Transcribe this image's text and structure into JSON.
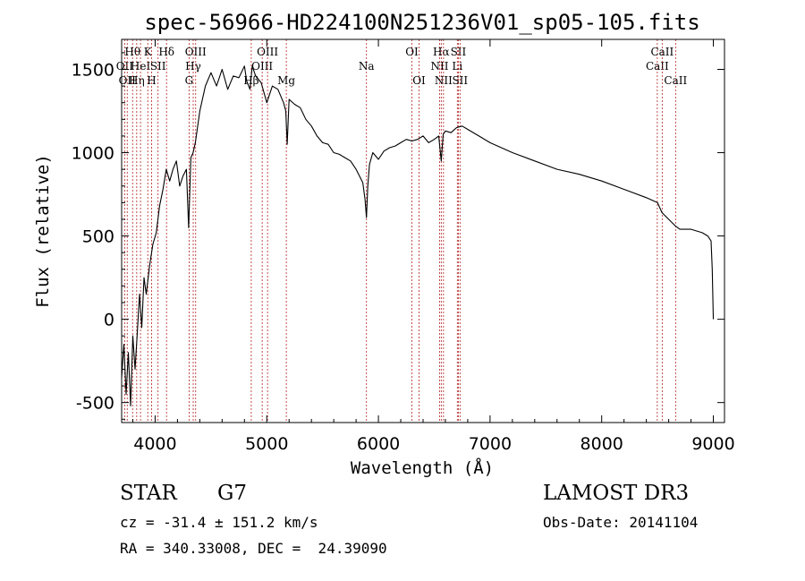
{
  "chart_data": {
    "type": "line",
    "title": "spec-56966-HD224100N251236V01_sp05-105.fits",
    "xlabel": "Wavelength (Å)",
    "ylabel": "Flux (relative)",
    "xlim": [
      3700,
      9100
    ],
    "ylim": [
      -620,
      1680
    ],
    "xticks": [
      4000,
      5000,
      6000,
      7000,
      8000,
      9000
    ],
    "yticks": [
      -500,
      0,
      500,
      1000,
      1500
    ],
    "grid": false,
    "series": [
      {
        "x": [
          3700,
          3720,
          3740,
          3760,
          3780,
          3800,
          3820,
          3840,
          3860,
          3880,
          3900,
          3920,
          3950,
          3980,
          4010,
          4040,
          4070,
          4100,
          4130,
          4160,
          4190,
          4220,
          4250,
          4280,
          4300,
          4320,
          4340,
          4360,
          4400,
          4450,
          4500,
          4550,
          4600,
          4650,
          4700,
          4750,
          4800,
          4820,
          4850,
          4870,
          4900,
          4950,
          5000,
          5050,
          5100,
          5150,
          5170,
          5183,
          5200,
          5250,
          5300,
          5350,
          5400,
          5450,
          5500,
          5550,
          5600,
          5650,
          5700,
          5750,
          5800,
          5830,
          5860,
          5880,
          5893,
          5905,
          5920,
          5950,
          6000,
          6050,
          6100,
          6150,
          6200,
          6250,
          6300,
          6350,
          6400,
          6450,
          6500,
          6540,
          6563,
          6580,
          6600,
          6650,
          6700,
          6750,
          6800,
          6900,
          7000,
          7200,
          7400,
          7600,
          7800,
          8000,
          8200,
          8400,
          8500,
          8540,
          8600,
          8660,
          8700,
          8800,
          8900,
          8950,
          8980,
          8990,
          9000
        ],
        "y": [
          -350,
          -150,
          -450,
          -200,
          -520,
          -100,
          -300,
          -80,
          150,
          -50,
          250,
          150,
          320,
          450,
          520,
          680,
          780,
          900,
          830,
          900,
          950,
          800,
          860,
          900,
          550,
          970,
          1000,
          1060,
          1250,
          1400,
          1480,
          1400,
          1500,
          1380,
          1460,
          1450,
          1520,
          1430,
          1380,
          1520,
          1460,
          1420,
          1300,
          1400,
          1380,
          1300,
          1250,
          1050,
          1320,
          1290,
          1270,
          1200,
          1160,
          1100,
          1060,
          1050,
          1000,
          990,
          970,
          950,
          900,
          860,
          820,
          720,
          610,
          800,
          930,
          1000,
          960,
          1010,
          1030,
          1040,
          1060,
          1080,
          1070,
          1080,
          1100,
          1060,
          1080,
          1100,
          950,
          1110,
          1130,
          1120,
          1150,
          1160,
          1140,
          1100,
          1060,
          1000,
          950,
          900,
          870,
          830,
          780,
          730,
          700,
          640,
          600,
          560,
          540,
          540,
          520,
          500,
          470,
          300,
          0
        ]
      }
    ],
    "line_markers": [
      {
        "wl": 3727,
        "label": "OII",
        "row": 2
      },
      {
        "wl": 3750,
        "label": "OII",
        "row": 3
      },
      {
        "wl": 3798,
        "label": "Hθ",
        "row": 1
      },
      {
        "wl": 3835,
        "label": "Hη",
        "row": 3
      },
      {
        "wl": 3869,
        "label": "HeI",
        "row": 2
      },
      {
        "wl": 3934,
        "label": "K",
        "row": 1
      },
      {
        "wl": 3968,
        "label": "H",
        "row": 3
      },
      {
        "wl": 4026,
        "label": "SII",
        "row": 2
      },
      {
        "wl": 4102,
        "label": "Hδ",
        "row": 1
      },
      {
        "wl": 4304,
        "label": "G",
        "row": 3
      },
      {
        "wl": 4341,
        "label": "Hγ",
        "row": 2
      },
      {
        "wl": 4363,
        "label": "OIII",
        "row": 1
      },
      {
        "wl": 4861,
        "label": "Hβ",
        "row": 3
      },
      {
        "wl": 4959,
        "label": "OIII",
        "row": 2
      },
      {
        "wl": 5007,
        "label": "OIII",
        "row": 1
      },
      {
        "wl": 5175,
        "label": "Mg",
        "row": 3
      },
      {
        "wl": 5893,
        "label": "Na",
        "row": 2
      },
      {
        "wl": 6300,
        "label": "OI",
        "row": 1
      },
      {
        "wl": 6364,
        "label": "OI",
        "row": 3
      },
      {
        "wl": 6548,
        "label": "NII",
        "row": 2
      },
      {
        "wl": 6563,
        "label": "Hα",
        "row": 1
      },
      {
        "wl": 6583,
        "label": "NII",
        "row": 3
      },
      {
        "wl": 6707,
        "label": "Li",
        "row": 2
      },
      {
        "wl": 6716,
        "label": "SII",
        "row": 1
      },
      {
        "wl": 6731,
        "label": "SII",
        "row": 3
      },
      {
        "wl": 8498,
        "label": "CaII",
        "row": 2
      },
      {
        "wl": 8542,
        "label": "CaII",
        "row": 1
      },
      {
        "wl": 8662,
        "label": "CaII",
        "row": 3
      }
    ]
  },
  "info": {
    "object_class": "STAR",
    "subclass": "G7",
    "survey": "LAMOST DR3",
    "cz": "cz = -31.4 ± 151.2 km/s",
    "obs_date": "Obs-Date: 20141104",
    "coords": "RA = 340.33008, DEC =  24.39090"
  },
  "colors": {
    "spectrum": "#000000",
    "line_marker": "#b22222"
  }
}
